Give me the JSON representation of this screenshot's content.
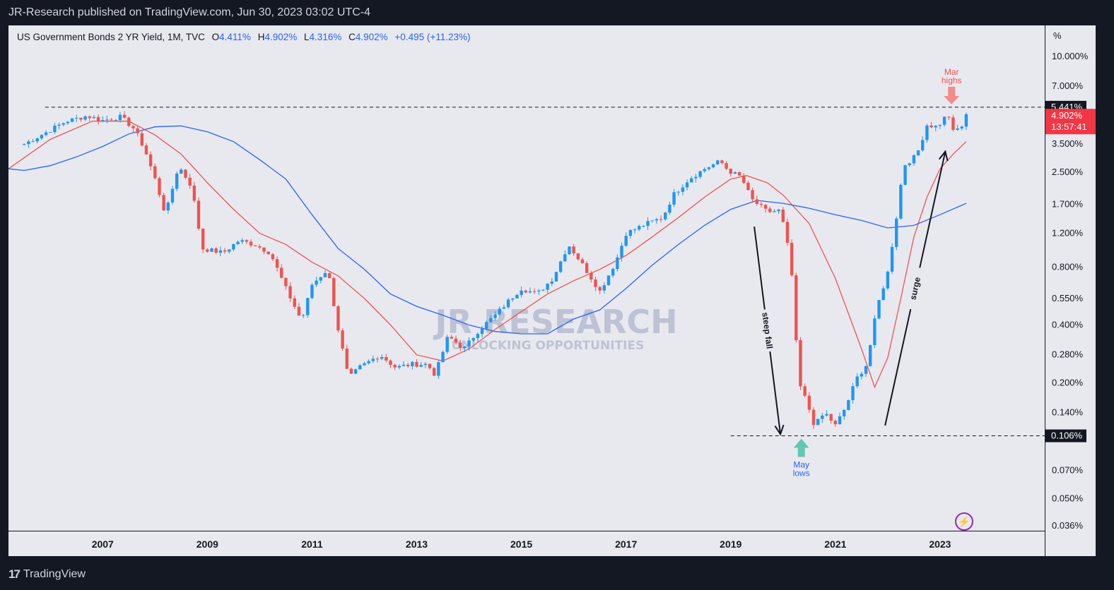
{
  "header": {
    "publisher_line": "JR-Research published on TradingView.com, Jun 30, 2023 03:02 UTC-4"
  },
  "footer": {
    "logo_mark": "17",
    "brand": "TradingView"
  },
  "legend": {
    "symbol": "US Government Bonds 2 YR Yield, 1M, TVC",
    "open_label": "O",
    "open": "4.411%",
    "high_label": "H",
    "high": "4.902%",
    "low_label": "L",
    "low": "4.316%",
    "close_label": "C",
    "close": "4.902%",
    "change": "+0.495 (+11.23%)"
  },
  "colors": {
    "up": "#2196f3",
    "down": "#ef5350",
    "ma_fast": "#ef5350",
    "ma_slow": "#2962ff",
    "background": "#e8e9ef"
  },
  "icons": {
    "alert": "lightning-icon"
  },
  "chart_data": {
    "type": "candlestick",
    "title": "US Government Bonds 2 YR Yield",
    "interval": "1M",
    "scale": "log",
    "y_unit": "%",
    "y_ticks": [
      "10.000%",
      "7.000%",
      "3.500%",
      "2.500%",
      "1.700%",
      "1.200%",
      "0.800%",
      "0.550%",
      "0.400%",
      "0.280%",
      "0.200%",
      "0.140%",
      "0.070%",
      "0.050%",
      "0.036%"
    ],
    "y_tick_values": [
      10.0,
      7.0,
      3.5,
      2.5,
      1.7,
      1.2,
      0.8,
      0.55,
      0.4,
      0.28,
      0.2,
      0.14,
      0.07,
      0.05,
      0.036
    ],
    "x_ticks": [
      "2007",
      "2009",
      "2011",
      "2013",
      "2015",
      "2017",
      "2019",
      "2021",
      "2023"
    ],
    "x_tick_years": [
      2007,
      2009,
      2011,
      2013,
      2015,
      2017,
      2019,
      2021,
      2023
    ],
    "x_range": [
      2005.2,
      2025.0
    ],
    "y_range": [
      0.034,
      14.5
    ],
    "y_axis_unit_label": "%",
    "price_labels": [
      {
        "text": "5.441%",
        "value": 5.441,
        "style": "dark"
      },
      {
        "text": "4.902%",
        "value": 4.902,
        "style": "current",
        "countdown": "13:57:41"
      },
      {
        "text": "0.106%",
        "value": 0.106,
        "style": "dark"
      }
    ],
    "horizontal_lines": [
      {
        "name": "Mar highs",
        "value": 5.441,
        "from": 2005.9
      },
      {
        "name": "May lows",
        "value": 0.106,
        "from": 2019.0
      }
    ],
    "candles_anchor_close": [
      [
        2005.5,
        3.5
      ],
      [
        2005.9,
        4.0
      ],
      [
        2006.3,
        4.6
      ],
      [
        2006.7,
        4.9
      ],
      [
        2007.0,
        4.65
      ],
      [
        2007.35,
        4.85
      ],
      [
        2007.6,
        4.2
      ],
      [
        2007.8,
        3.3
      ],
      [
        2008.0,
        2.3
      ],
      [
        2008.2,
        1.5
      ],
      [
        2008.45,
        2.7
      ],
      [
        2008.7,
        2.1
      ],
      [
        2008.9,
        1.0
      ],
      [
        2009.3,
        0.95
      ],
      [
        2009.6,
        1.1
      ],
      [
        2009.9,
        1.05
      ],
      [
        2010.2,
        0.95
      ],
      [
        2010.5,
        0.62
      ],
      [
        2010.8,
        0.42
      ],
      [
        2011.0,
        0.65
      ],
      [
        2011.3,
        0.78
      ],
      [
        2011.5,
        0.38
      ],
      [
        2011.7,
        0.21
      ],
      [
        2011.9,
        0.24
      ],
      [
        2012.3,
        0.28
      ],
      [
        2012.6,
        0.24
      ],
      [
        2012.9,
        0.25
      ],
      [
        2013.2,
        0.25
      ],
      [
        2013.35,
        0.22
      ],
      [
        2013.6,
        0.35
      ],
      [
        2013.9,
        0.3
      ],
      [
        2014.2,
        0.38
      ],
      [
        2014.5,
        0.45
      ],
      [
        2014.8,
        0.55
      ],
      [
        2015.0,
        0.62
      ],
      [
        2015.3,
        0.58
      ],
      [
        2015.6,
        0.7
      ],
      [
        2015.9,
        1.05
      ],
      [
        2016.2,
        0.8
      ],
      [
        2016.5,
        0.6
      ],
      [
        2016.8,
        0.85
      ],
      [
        2017.0,
        1.2
      ],
      [
        2017.4,
        1.35
      ],
      [
        2017.7,
        1.45
      ],
      [
        2017.9,
        1.9
      ],
      [
        2018.2,
        2.3
      ],
      [
        2018.5,
        2.6
      ],
      [
        2018.8,
        2.85
      ],
      [
        2018.95,
        2.55
      ],
      [
        2019.2,
        2.35
      ],
      [
        2019.4,
        1.8
      ],
      [
        2019.7,
        1.55
      ],
      [
        2019.95,
        1.58
      ],
      [
        2020.15,
        0.85
      ],
      [
        2020.3,
        0.2
      ],
      [
        2020.45,
        0.16
      ],
      [
        2020.6,
        0.12
      ],
      [
        2020.8,
        0.14
      ],
      [
        2021.0,
        0.12
      ],
      [
        2021.2,
        0.15
      ],
      [
        2021.4,
        0.21
      ],
      [
        2021.6,
        0.25
      ],
      [
        2021.8,
        0.5
      ],
      [
        2022.0,
        0.75
      ],
      [
        2022.15,
        1.35
      ],
      [
        2022.3,
        2.7
      ],
      [
        2022.55,
        3.05
      ],
      [
        2022.75,
        4.4
      ],
      [
        2022.95,
        4.3
      ],
      [
        2023.15,
        5.05
      ],
      [
        2023.25,
        4.05
      ],
      [
        2023.45,
        4.4
      ],
      [
        2023.5,
        4.902
      ]
    ],
    "moving_averages": [
      {
        "color": "#ef5350",
        "points": [
          [
            2005.2,
            2.6
          ],
          [
            2006.0,
            3.7
          ],
          [
            2006.8,
            4.6
          ],
          [
            2007.5,
            4.6
          ],
          [
            2008.0,
            3.9
          ],
          [
            2008.5,
            3.1
          ],
          [
            2009.0,
            2.2
          ],
          [
            2009.5,
            1.6
          ],
          [
            2010.0,
            1.2
          ],
          [
            2010.5,
            1.05
          ],
          [
            2011.0,
            0.85
          ],
          [
            2011.5,
            0.72
          ],
          [
            2012.0,
            0.55
          ],
          [
            2012.5,
            0.4
          ],
          [
            2013.0,
            0.28
          ],
          [
            2013.5,
            0.26
          ],
          [
            2014.0,
            0.3
          ],
          [
            2014.5,
            0.38
          ],
          [
            2015.0,
            0.47
          ],
          [
            2015.5,
            0.58
          ],
          [
            2016.0,
            0.68
          ],
          [
            2016.5,
            0.78
          ],
          [
            2017.0,
            0.92
          ],
          [
            2017.5,
            1.15
          ],
          [
            2018.0,
            1.45
          ],
          [
            2018.5,
            1.85
          ],
          [
            2019.0,
            2.3
          ],
          [
            2019.3,
            2.4
          ],
          [
            2019.7,
            2.2
          ],
          [
            2020.0,
            1.9
          ],
          [
            2020.5,
            1.35
          ],
          [
            2021.0,
            0.7
          ],
          [
            2021.5,
            0.3
          ],
          [
            2021.75,
            0.19
          ],
          [
            2022.0,
            0.27
          ],
          [
            2022.25,
            0.55
          ],
          [
            2022.5,
            1.15
          ],
          [
            2022.75,
            1.85
          ],
          [
            2023.0,
            2.6
          ],
          [
            2023.25,
            3.1
          ],
          [
            2023.5,
            3.6
          ]
        ]
      },
      {
        "color": "#2962ff",
        "points": [
          [
            2005.2,
            2.6
          ],
          [
            2005.5,
            2.55
          ],
          [
            2006.0,
            2.7
          ],
          [
            2006.5,
            3.0
          ],
          [
            2007.0,
            3.4
          ],
          [
            2007.5,
            3.95
          ],
          [
            2008.0,
            4.3
          ],
          [
            2008.5,
            4.35
          ],
          [
            2009.0,
            4.05
          ],
          [
            2009.5,
            3.6
          ],
          [
            2010.0,
            2.9
          ],
          [
            2010.5,
            2.3
          ],
          [
            2011.0,
            1.5
          ],
          [
            2011.5,
            1.0
          ],
          [
            2012.0,
            0.78
          ],
          [
            2012.5,
            0.58
          ],
          [
            2013.0,
            0.5
          ],
          [
            2013.5,
            0.45
          ],
          [
            2014.0,
            0.4
          ],
          [
            2014.5,
            0.37
          ],
          [
            2015.0,
            0.36
          ],
          [
            2015.5,
            0.36
          ],
          [
            2016.0,
            0.43
          ],
          [
            2016.5,
            0.48
          ],
          [
            2017.0,
            0.62
          ],
          [
            2017.5,
            0.82
          ],
          [
            2018.0,
            1.05
          ],
          [
            2018.5,
            1.32
          ],
          [
            2019.0,
            1.6
          ],
          [
            2019.5,
            1.78
          ],
          [
            2020.0,
            1.72
          ],
          [
            2020.5,
            1.62
          ],
          [
            2021.0,
            1.5
          ],
          [
            2021.5,
            1.4
          ],
          [
            2022.0,
            1.28
          ],
          [
            2022.5,
            1.32
          ],
          [
            2023.0,
            1.5
          ],
          [
            2023.5,
            1.72
          ]
        ]
      }
    ],
    "annotations": {
      "mar_highs": {
        "line1": "Mar",
        "line2": "highs",
        "year": 2023.22,
        "color": "#ef5350"
      },
      "may_lows": {
        "line1": "May",
        "line2": "lows",
        "year": 2020.35,
        "color": "#2962ff"
      },
      "steep_fall": {
        "text": "steep fall",
        "from": [
          2019.45,
          1.3
        ],
        "to": [
          2019.95,
          0.108
        ]
      },
      "surge": {
        "text": "surge",
        "from": [
          2021.95,
          0.12
        ],
        "to": [
          2023.1,
          3.2
        ]
      }
    },
    "watermark": {
      "line1": "JR RESEARCH",
      "line2": "UNLOCKING OPPORTUNITIES"
    }
  }
}
